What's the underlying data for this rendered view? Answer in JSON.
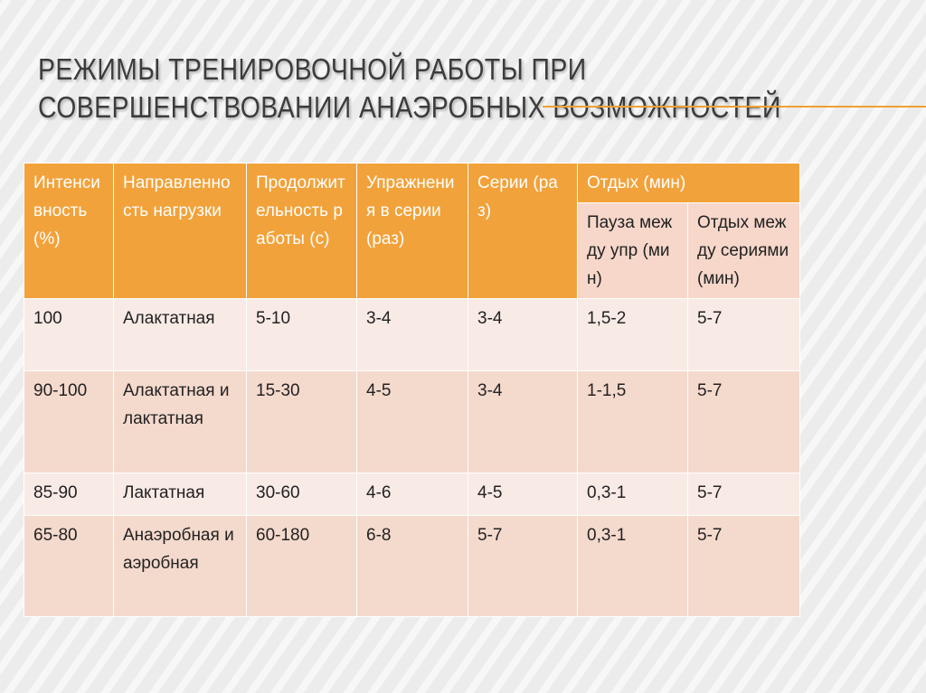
{
  "title": [
    "РЕЖИМЫ ТРЕНИРОВОЧНОЙ РАБОТЫ ПРИ",
    "СОВЕРШЕНСТВОВАНИИ АНАЭРОБНЫХ ВОЗМОЖНОСТЕЙ"
  ],
  "table": {
    "header": [
      "Интенсивность (%)",
      "Направленность нагрузки",
      "Продолжительность работы (с)",
      "Упражнения в серии (раз)",
      "Серии (раз)",
      "Отдых (мин)"
    ],
    "subheader": [
      "Пауза между упр (мин)",
      "Отдых между сериями (мин)"
    ],
    "rows": [
      [
        "100",
        "Алактатная",
        "5-10",
        "3-4",
        "3-4",
        "1,5-2",
        "5-7"
      ],
      [
        "90-100",
        "Алактатная и лактатная",
        "15-30",
        "4-5",
        "3-4",
        "1-1,5",
        "5-7"
      ],
      [
        "85-90",
        "Лактатная",
        "30-60",
        "4-6",
        "4-5",
        "0,3-1",
        "5-7"
      ],
      [
        "65-80",
        "Анаэробная и аэробная",
        "60-180",
        "6-8",
        "5-7",
        "0,3-1",
        "5-7"
      ]
    ]
  }
}
